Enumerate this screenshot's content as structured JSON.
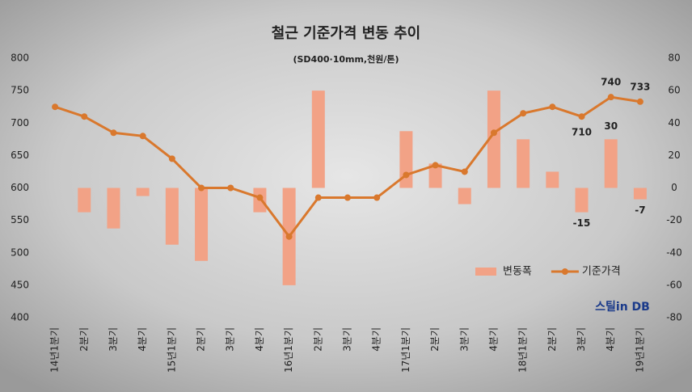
{
  "chart_data": {
    "type": "bar-line",
    "title": "철근 기준가격 변동 추이",
    "subtitle": "(SD400·10mm,천원/톤)",
    "watermark": "스틸in DB",
    "categories": [
      "14년1분기",
      "2분기",
      "3분기",
      "4분기",
      "15년1분기",
      "2분기",
      "3분기",
      "4분기",
      "16년1분기",
      "2분기",
      "3분기",
      "4분기",
      "17년1분기",
      "2분기",
      "3분기",
      "4분기",
      "18년1분기",
      "2분기",
      "3분기",
      "4분기",
      "19년1분기"
    ],
    "ylim": [
      400,
      800
    ],
    "yticks": [
      400,
      450,
      500,
      550,
      600,
      650,
      700,
      750,
      800
    ],
    "y2lim": [
      -80,
      80
    ],
    "y2ticks": [
      -80,
      -60,
      -40,
      -20,
      0,
      20,
      40,
      60,
      80
    ],
    "legend": "lower right",
    "series": [
      {
        "name": "변동폭",
        "type": "bar",
        "axis": "y2",
        "color": "#f2a286",
        "values": [
          null,
          -15,
          -25,
          -5,
          -35,
          -45,
          0,
          -15,
          -60,
          60,
          0,
          0,
          35,
          15,
          -10,
          60,
          30,
          10,
          -15,
          30,
          -7
        ],
        "value_labels": [
          null,
          null,
          null,
          null,
          null,
          null,
          null,
          null,
          null,
          null,
          null,
          null,
          null,
          null,
          null,
          null,
          null,
          null,
          "-15",
          "30",
          "-7"
        ]
      },
      {
        "name": "기준가격",
        "type": "line",
        "color": "#d9782d",
        "values": [
          725,
          710,
          685,
          680,
          645,
          600,
          600,
          585,
          525,
          585,
          585,
          585,
          620,
          635,
          625,
          685,
          715,
          725,
          710,
          740,
          733
        ],
        "value_labels": [
          null,
          null,
          null,
          null,
          null,
          null,
          null,
          null,
          null,
          null,
          null,
          null,
          null,
          null,
          null,
          null,
          null,
          null,
          "710",
          "740",
          "733"
        ]
      }
    ]
  }
}
